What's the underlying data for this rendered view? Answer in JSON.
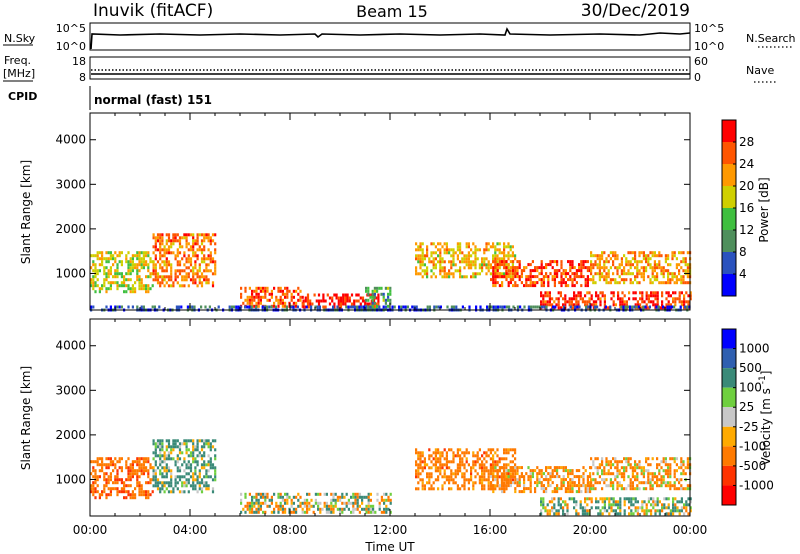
{
  "header": {
    "station": "Inuvik (fitACF)",
    "beam": "Beam 15",
    "date": "30/Dec/2019"
  },
  "strips": {
    "nsky_label": "N.Sky",
    "nsky_ticks": [
      "10^5",
      "10^0"
    ],
    "nsearch_label": "N.Search",
    "nsearch_ticks": [
      "10^5",
      "10^0"
    ],
    "freq_label": "Freq.",
    "freq_unit": "[MHz]",
    "freq_ticks": [
      "18",
      "8"
    ],
    "nave_label": "Nave",
    "nave_ticks": [
      "60",
      "0"
    ],
    "cpid_label": "CPID",
    "cpid_text": "normal (fast) 151"
  },
  "colors": {
    "power_scale": [
      "#0000ff",
      "#2a52be",
      "#4f8f5c",
      "#3fbf3f",
      "#cfcf00",
      "#ff9900",
      "#ff5500",
      "#ff0000"
    ],
    "velocity_scale": [
      "#0000ff",
      "#2f5fb0",
      "#3a8a78",
      "#6fcf3f",
      "#c8c8c8",
      "#ffaa00",
      "#ff7a00",
      "#ff3300",
      "#ff0000"
    ]
  },
  "chart_data": [
    {
      "type": "heatmap",
      "name": "power",
      "xlabel": "",
      "ylabel": "Slant Range [km]",
      "xlim": [
        0,
        24
      ],
      "ylim": [
        180,
        4600
      ],
      "yticks": [
        1000,
        2000,
        3000,
        4000
      ],
      "colorbar_label": "Power [dB]",
      "colorbar_ticks": [
        "4",
        "8",
        "12",
        "16",
        "20",
        "24",
        "28"
      ],
      "colorbar_range": [
        0,
        32
      ],
      "regions": [
        {
          "x": [
            0.0,
            2.5
          ],
          "y": [
            600,
            1500
          ],
          "v": 18
        },
        {
          "x": [
            2.5,
            5.0
          ],
          "y": [
            700,
            1900
          ],
          "v": 24
        },
        {
          "x": [
            6.0,
            8.5
          ],
          "y": [
            250,
            700
          ],
          "v": 26
        },
        {
          "x": [
            8.5,
            11.5
          ],
          "y": [
            250,
            550
          ],
          "v": 29
        },
        {
          "x": [
            11.0,
            12.0
          ],
          "y": [
            200,
            700
          ],
          "v": 12
        },
        {
          "x": [
            13.0,
            17.0
          ],
          "y": [
            900,
            1700
          ],
          "v": 20
        },
        {
          "x": [
            16.0,
            20.0
          ],
          "y": [
            700,
            1300
          ],
          "v": 27
        },
        {
          "x": [
            18.0,
            24.0
          ],
          "y": [
            250,
            600
          ],
          "v": 28
        },
        {
          "x": [
            20.0,
            24.0
          ],
          "y": [
            800,
            1500
          ],
          "v": 22
        },
        {
          "x": [
            0.0,
            24.0
          ],
          "y": [
            180,
            280
          ],
          "v": 6
        }
      ]
    },
    {
      "type": "heatmap",
      "name": "velocity",
      "xlabel": "Time UT",
      "ylabel": "Slant Range [km]",
      "xlim": [
        0,
        24
      ],
      "ylim": [
        180,
        4600
      ],
      "yticks": [
        1000,
        2000,
        3000,
        4000
      ],
      "xticks": [
        "00:00",
        "04:00",
        "08:00",
        "12:00",
        "16:00",
        "20:00",
        "00:00"
      ],
      "colorbar_label": "Velocity [m s^-1]",
      "colorbar_ticks": [
        "-1000",
        "-500",
        "-100",
        "-25",
        "25",
        "100",
        "500",
        "1000"
      ],
      "regions": [
        {
          "x": [
            0.0,
            2.5
          ],
          "y": [
            600,
            1500
          ],
          "v": -400
        },
        {
          "x": [
            2.5,
            5.0
          ],
          "y": [
            700,
            1900
          ],
          "v": 150
        },
        {
          "x": [
            6.0,
            12.0
          ],
          "y": [
            250,
            700
          ],
          "v": 0
        },
        {
          "x": [
            13.0,
            17.0
          ],
          "y": [
            800,
            1700
          ],
          "v": -300
        },
        {
          "x": [
            16.0,
            20.0
          ],
          "y": [
            700,
            1300
          ],
          "v": -200
        },
        {
          "x": [
            18.0,
            24.0
          ],
          "y": [
            250,
            600
          ],
          "v": 80
        },
        {
          "x": [
            20.0,
            24.0
          ],
          "y": [
            800,
            1500
          ],
          "v": -150
        }
      ]
    }
  ]
}
